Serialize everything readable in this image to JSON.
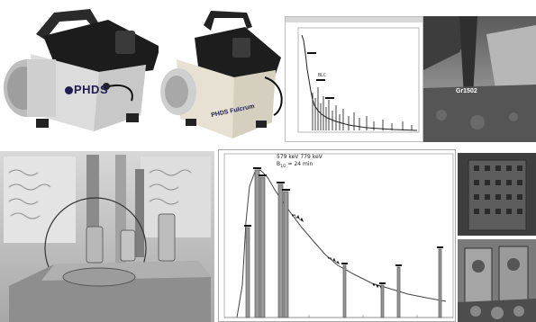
{
  "device_left": {
    "brand": "PHDS"
  },
  "device_right": {
    "brand": "PHDS Fulcrum"
  },
  "spectrum_top": {
    "marker_label": "BLC"
  },
  "site_photo": {
    "caption": "Gr1502"
  },
  "annotation": {
    "line1": "579 keV 779 keV",
    "line2": "B",
    "line2_sub": "1/2",
    "line2_rest": " = 24 min"
  },
  "chart_data": {
    "type": "line",
    "title": "",
    "xlabel": "",
    "ylabel": "",
    "grid": false,
    "series": [
      {
        "name": "",
        "values": []
      }
    ]
  }
}
